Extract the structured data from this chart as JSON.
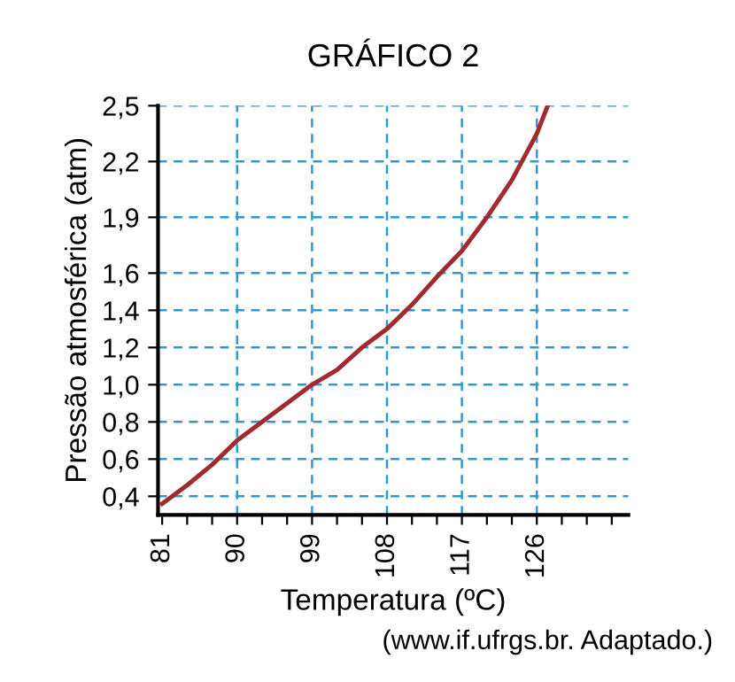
{
  "chart_data": {
    "type": "line",
    "title": "GRÁFICO 2",
    "xlabel": "Temperatura (ºC)",
    "ylabel": "Pressão atmosférica (atm)",
    "annotations": [
      "(www.if.ufrgs.br. Adaptado.)"
    ],
    "x": [
      81,
      84,
      87,
      90,
      93,
      96,
      99,
      102,
      105,
      108,
      111,
      114,
      117,
      120,
      123,
      126,
      127.3
    ],
    "series": [
      {
        "color": "#a02a2e",
        "values": [
          0.36,
          0.46,
          0.57,
          0.7,
          0.8,
          0.9,
          1.0,
          1.08,
          1.2,
          1.3,
          1.43,
          1.58,
          1.72,
          1.9,
          2.1,
          2.35,
          2.5
        ]
      }
    ],
    "xlim": [
      80.5,
      137
    ],
    "ylim": [
      0.3,
      2.5
    ],
    "xticks": [
      81,
      {
        "value": 84,
        "label": null
      },
      {
        "value": 87,
        "label": null
      },
      90,
      {
        "value": 93,
        "label": null
      },
      {
        "value": 96,
        "label": null
      },
      99,
      {
        "value": 102,
        "label": null
      },
      {
        "value": 105,
        "label": null
      },
      108,
      {
        "value": 111,
        "label": null
      },
      {
        "value": 114,
        "label": null
      },
      117,
      {
        "value": 120,
        "label": null
      },
      {
        "value": 123,
        "label": null
      },
      126,
      {
        "value": 129,
        "label": null
      },
      {
        "value": 132,
        "label": null
      },
      {
        "value": 135,
        "label": null
      }
    ],
    "yticks": [
      {
        "value": 0.4,
        "label": "0,4"
      },
      {
        "value": 0.6,
        "label": "0,6"
      },
      {
        "value": 0.8,
        "label": "0,8"
      },
      {
        "value": 1.0,
        "label": "1,0"
      },
      {
        "value": 1.2,
        "label": "1,2"
      },
      {
        "value": 1.4,
        "label": "1,4"
      },
      {
        "value": 1.6,
        "label": "1,6"
      },
      {
        "value": 1.9,
        "label": "1,9"
      },
      {
        "value": 2.2,
        "label": "2,2"
      },
      {
        "value": 2.5,
        "label": "2,5"
      }
    ],
    "grid": true,
    "marker": "none",
    "line_style": "solid",
    "legend": false
  }
}
